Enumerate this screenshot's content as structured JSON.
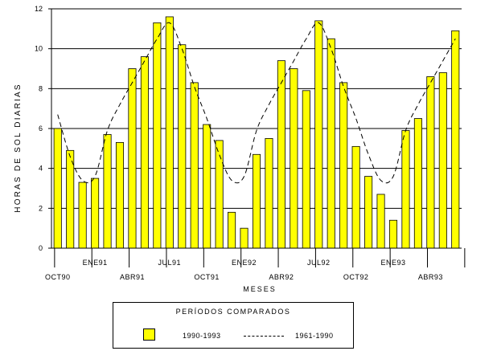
{
  "chart_data": {
    "type": "bar",
    "ylabel": "HORAS DE SOL DIARIAS",
    "xlabel": "MESES",
    "ylim": [
      0,
      12
    ],
    "yticks": [
      0,
      2,
      4,
      6,
      8,
      10,
      12
    ],
    "grid": true,
    "x": [
      "OCT90",
      "NOV90",
      "DIC90",
      "ENE91",
      "FEB91",
      "MAR91",
      "ABR91",
      "MAY91",
      "JUN91",
      "JUL91",
      "AGO91",
      "SEP91",
      "OCT91",
      "NOV91",
      "DIC91",
      "ENE92",
      "FEB92",
      "MAR92",
      "ABR92",
      "MAY92",
      "JUN92",
      "JUL92",
      "AGO92",
      "SEP92",
      "OCT92",
      "NOV92",
      "DIC92",
      "ENE93",
      "FEB93",
      "MAR93",
      "ABR93",
      "MAY93",
      "JUN93"
    ],
    "tick_labels_bottom": [
      {
        "label": "OCT90",
        "index": 0
      },
      {
        "label": "ABR91",
        "index": 6
      },
      {
        "label": "OCT91",
        "index": 12
      },
      {
        "label": "ABR92",
        "index": 18
      },
      {
        "label": "OCT92",
        "index": 24
      },
      {
        "label": "ABR93",
        "index": 30
      }
    ],
    "tick_labels_top": [
      {
        "label": "ENE91",
        "index": 3
      },
      {
        "label": "JUL91",
        "index": 9
      },
      {
        "label": "ENE92",
        "index": 15
      },
      {
        "label": "JUL92",
        "index": 21
      },
      {
        "label": "ENE93",
        "index": 27
      }
    ],
    "series": [
      {
        "name": "1990-1993",
        "style": "bar",
        "color": "#ffff00",
        "values": [
          6.0,
          4.9,
          3.3,
          3.5,
          5.7,
          5.3,
          9.0,
          9.6,
          11.3,
          11.6,
          10.2,
          8.3,
          6.2,
          5.4,
          1.8,
          1.0,
          4.7,
          5.5,
          9.4,
          9.0,
          7.9,
          11.4,
          10.5,
          8.3,
          5.1,
          3.6,
          2.7,
          1.4,
          5.9,
          6.5,
          8.6,
          8.8,
          10.9
        ]
      },
      {
        "name": "1961-1990",
        "style": "dashed-line",
        "color": "#000000",
        "values": [
          6.7,
          4.6,
          3.4,
          3.6,
          5.9,
          7.2,
          8.3,
          9.4,
          10.5,
          11.3,
          10.0,
          8.1,
          6.5,
          4.7,
          3.4,
          3.6,
          5.9,
          7.2,
          8.3,
          9.4,
          10.5,
          11.3,
          10.0,
          8.1,
          6.5,
          4.7,
          3.4,
          3.6,
          5.9,
          7.2,
          8.3,
          9.4,
          10.5
        ]
      }
    ]
  },
  "legend": {
    "title": "PERÍODOS COMPARADOS",
    "items": [
      {
        "label": "1990-1993"
      },
      {
        "label": "1961-1990"
      }
    ]
  }
}
